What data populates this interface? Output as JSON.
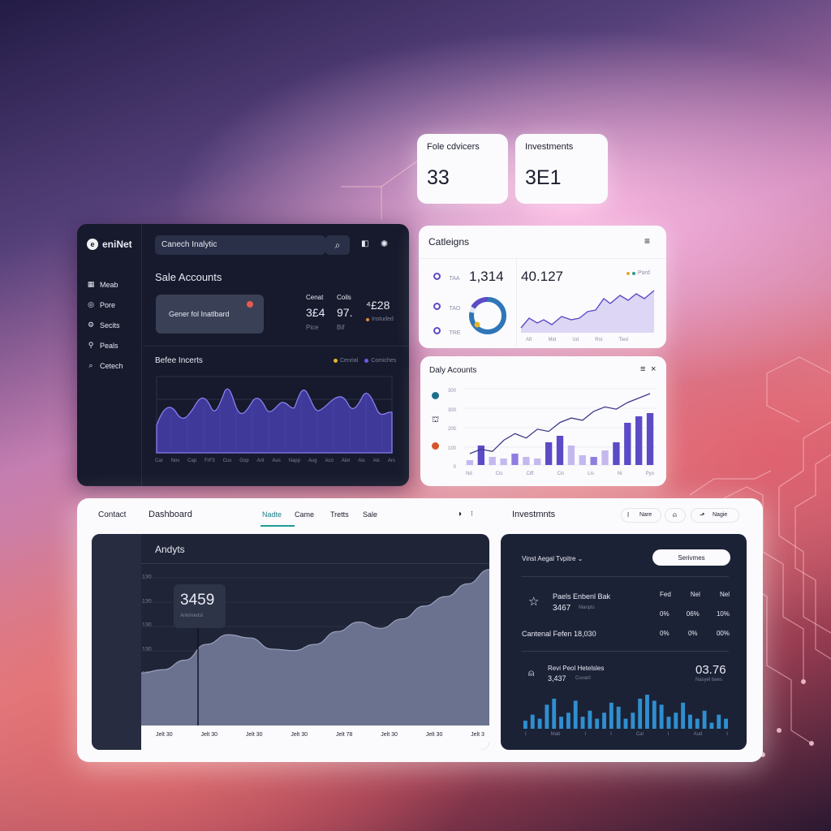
{
  "stat_cards": [
    {
      "title": "Fole cdvicers",
      "value": "33"
    },
    {
      "title": "Investments",
      "value": "3E1"
    }
  ],
  "left_panel": {
    "logo": "eniNet",
    "search": {
      "value": "Canech Inalytic"
    },
    "nav": [
      {
        "icon": "grid-icon",
        "label": "Meab"
      },
      {
        "icon": "circle-icon",
        "label": "Pore"
      },
      {
        "icon": "gear-icon",
        "label": "Secits"
      },
      {
        "icon": "pin-icon",
        "label": "Peals"
      },
      {
        "icon": "search-icon",
        "label": "Cetech"
      }
    ],
    "heading": "Sale Accounts",
    "button_label": "Gener fol Inatlbard",
    "stats": [
      {
        "label": "Cenat",
        "value": "3£4",
        "sub": "Pice"
      },
      {
        "label": "Coils",
        "value": "97.",
        "sub": "Bif"
      },
      {
        "label": "",
        "value": "⁴£28",
        "sub": "Instuded"
      }
    ],
    "chart_title": "Befee Incerts",
    "legend": [
      {
        "label": "Cenrial",
        "color": "#e4b72a"
      },
      {
        "label": "Comiches",
        "color": "#6d5ce6"
      }
    ],
    "x_ticks": [
      "Car",
      "Nov",
      "Cap",
      "FrF3",
      "Cus",
      "Gop",
      "Arit",
      "Aus",
      "Napp",
      "Aug",
      "Aco",
      "Alor",
      "Ais",
      "Ais",
      "Ars"
    ]
  },
  "categories_card": {
    "title": "Catleigns",
    "rows": [
      {
        "icon": "dot-icon",
        "label": "TAA"
      },
      {
        "icon": "dot-icon",
        "label": "TAO"
      },
      {
        "icon": "dot-icon",
        "label": "TRE"
      }
    ],
    "value_a": "1,314",
    "value_b": "40.127",
    "legend": "Pard",
    "donut_fraction": 0.78,
    "x_ticks": [
      "Aft",
      "Mid",
      "Ud",
      "Rst",
      "Tied"
    ]
  },
  "daily_card": {
    "title": "Daly Acounts",
    "y_ticks": [
      "300",
      "300",
      "200",
      "100",
      "0"
    ],
    "x_ticks": [
      "Nd",
      "Cis",
      "Ciff",
      "Cis",
      "Lis",
      "Ni",
      "Pyo"
    ],
    "bars": [
      3,
      12,
      5,
      4,
      7,
      5,
      4,
      14,
      18,
      12,
      6,
      5,
      9,
      14,
      26,
      30,
      32
    ],
    "bar_colors": [
      "#c4b8ef",
      "#5b4bc6",
      "#c4b8ef",
      "#c4b8ef",
      "#8f7ee0",
      "#c4b8ef",
      "#c4b8ef",
      "#5b4bc6",
      "#5b4bc6",
      "#c4b8ef",
      "#c4b8ef",
      "#8f7ee0",
      "#c4b8ef",
      "#5b4bc6",
      "#5b4bc6",
      "#5b4bc6",
      "#5b4bc6"
    ],
    "line": [
      8,
      10,
      9,
      14,
      17,
      15,
      19,
      18,
      22,
      24,
      23,
      27,
      29,
      28,
      31,
      33,
      35
    ]
  },
  "bottom_panel": {
    "nav": {
      "contact": "Contact",
      "dashboard": "Dashboard",
      "tabs": [
        "Nadte",
        "Came",
        "Tretts",
        "Sale"
      ],
      "active_tab": "Nadte",
      "section": "Investmnts",
      "pills": [
        "Nare",
        "",
        "Nagie"
      ]
    },
    "analytics": {
      "title": "Andyts",
      "tooltip_value": "3459",
      "tooltip_sub": "Ankimedst",
      "y_ticks": [
        "130",
        "130",
        "130",
        "130",
        "130",
        "130",
        "130"
      ],
      "x_ticks": [
        "Jelt 30",
        "Jelt 30",
        "Jelt 30",
        "Jelt 30",
        "Jelt 78",
        "Jelt 30",
        "Jelt 30",
        "Jelt 3"
      ],
      "series": [
        30,
        32,
        38,
        48,
        54,
        52,
        45,
        44,
        48,
        56,
        62,
        58,
        64,
        72,
        78,
        86,
        95
      ]
    },
    "investments": {
      "select_label": "Vinst Aegal Tvpitre ⌄",
      "button_label": "Serivmes",
      "col_headers": [
        "Fed",
        "Nel",
        "Nel"
      ],
      "row1_title": "Paels Enbenl Bak",
      "row1_sub": "3467",
      "row1_sub2": "Manpts",
      "row1_vals": [
        "0%",
        "06%",
        "10%"
      ],
      "row2_title": "Cantenal Fefen 18,030",
      "row2_vals": [
        "0%",
        "0%",
        "00%"
      ],
      "feature_title": "Revi Peol Hetelsles",
      "feature_sub": "3,437",
      "feature_sub2": "Cuvanl",
      "feature_value": "03.76",
      "feature_value_sub": "Nasyel bees",
      "bars": [
        8,
        14,
        10,
        24,
        30,
        12,
        16,
        28,
        12,
        18,
        10,
        16,
        26,
        22,
        10,
        16,
        30,
        34,
        28,
        24,
        12,
        16,
        26,
        14,
        10,
        18,
        6,
        14,
        10
      ],
      "x_ticks": [
        "I",
        "Mab",
        "I",
        "I",
        "Cal",
        "I",
        "Aud",
        "I"
      ]
    }
  }
}
